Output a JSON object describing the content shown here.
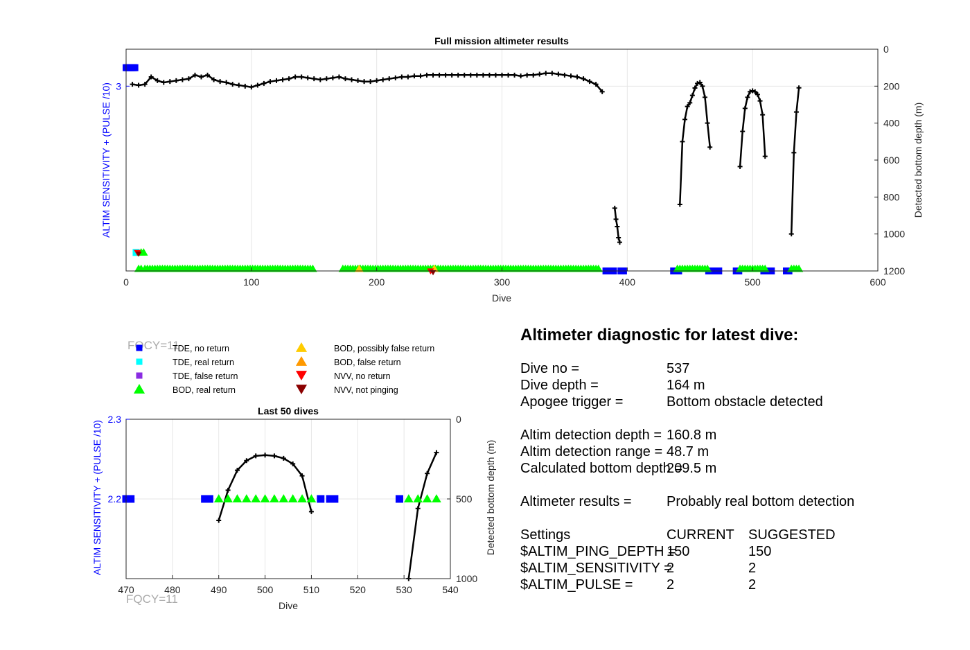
{
  "colors": {
    "tde_no_return": "#0000ff",
    "tde_real_return": "#00ffff",
    "tde_false_return": "#8a2be2",
    "bod_real_return": "#00ff00",
    "bod_possibly_false": "#ffcc00",
    "bod_false_return": "#ff9900",
    "nvv_no_return": "#ff0000",
    "nvv_not_pinging": "#8b0000",
    "bottom_depth_line": "#000000",
    "left_axis": "#0000ff"
  },
  "watermark": "FQCY=11",
  "legend": [
    {
      "label": "TDE, no return",
      "marker": "square",
      "color": "#0000ff"
    },
    {
      "label": "TDE, real return",
      "marker": "square",
      "color": "#00ffff"
    },
    {
      "label": "TDE, false return",
      "marker": "square",
      "color": "#8a2be2"
    },
    {
      "label": "BOD, real return",
      "marker": "triangle-up",
      "color": "#00ff00"
    },
    {
      "label": "BOD, possibly false return",
      "marker": "triangle-up",
      "color": "#ffcc00"
    },
    {
      "label": "BOD, false return",
      "marker": "triangle-up",
      "color": "#ff9900"
    },
    {
      "label": "NVV, no return",
      "marker": "triangle-down",
      "color": "#ff0000"
    },
    {
      "label": "NVV, not pinging",
      "marker": "triangle-down",
      "color": "#8b0000"
    }
  ],
  "chart_data": [
    {
      "type": "scatter",
      "title": "Full mission altimeter results",
      "xlabel": "Dive",
      "ylabel": "ALTIM SENSITIVITY + (PULSE /10)",
      "ylabel_right": "Detected bottom depth (m)",
      "xlim": [
        0,
        600
      ],
      "ylim_left": [
        2.0,
        3.2
      ],
      "ylim_right": [
        1200,
        0
      ],
      "right_axis_reversed": true,
      "grid": true,
      "xticks": [
        "0",
        "100",
        "200",
        "300",
        "400",
        "500",
        "600"
      ],
      "yticks_left": [
        "3"
      ],
      "yticks_right": [
        "0",
        "200",
        "400",
        "600",
        "800",
        "1000",
        "1200"
      ],
      "bottom_depth_segments": [
        {
          "x": [
            5,
            10,
            15,
            20,
            25,
            30,
            35,
            40,
            45,
            50,
            55,
            60,
            65,
            70,
            75,
            80,
            85,
            90,
            95,
            100,
            105,
            110,
            115,
            120,
            125,
            130,
            135,
            140,
            145,
            150,
            155,
            160,
            165,
            170,
            175,
            180,
            185,
            190,
            195,
            200,
            205,
            210,
            215,
            220,
            225,
            230,
            235,
            240,
            245,
            250,
            255,
            260,
            265,
            270,
            275,
            280,
            285,
            290,
            295,
            300,
            305,
            310,
            315,
            320,
            325,
            330,
            335,
            340,
            345,
            350,
            355,
            360,
            365,
            370,
            375,
            380
          ],
          "y": [
            190,
            195,
            190,
            150,
            170,
            180,
            175,
            170,
            165,
            160,
            140,
            150,
            140,
            165,
            175,
            180,
            190,
            195,
            200,
            205,
            195,
            185,
            175,
            170,
            165,
            160,
            150,
            150,
            155,
            160,
            165,
            160,
            155,
            150,
            160,
            165,
            170,
            175,
            175,
            170,
            165,
            160,
            155,
            150,
            150,
            145,
            145,
            140,
            140,
            140,
            140,
            140,
            140,
            140,
            140,
            140,
            140,
            140,
            140,
            140,
            140,
            140,
            145,
            140,
            140,
            135,
            130,
            130,
            135,
            140,
            145,
            150,
            160,
            175,
            190,
            230
          ]
        },
        {
          "x": [
            390,
            391,
            392,
            393,
            394
          ],
          "y": [
            860,
            920,
            960,
            1020,
            1045
          ]
        },
        {
          "x": [
            442,
            444,
            446,
            448,
            450,
            452,
            454,
            456,
            458,
            460,
            462,
            464,
            466
          ],
          "y": [
            840,
            500,
            380,
            310,
            290,
            250,
            210,
            185,
            180,
            200,
            260,
            400,
            530
          ]
        },
        {
          "x": [
            490,
            492,
            494,
            496,
            498,
            500,
            502,
            504,
            506,
            508,
            510
          ],
          "y": [
            635,
            445,
            320,
            260,
            230,
            225,
            230,
            245,
            280,
            355,
            580
          ]
        },
        {
          "x": [
            531,
            533,
            535,
            537
          ],
          "y": [
            1000,
            560,
            340,
            209
          ]
        }
      ],
      "tde_no_return": [
        [
          0,
          3.1
        ],
        [
          1,
          3.1
        ],
        [
          2,
          3.1
        ],
        [
          3,
          3.1
        ],
        [
          4,
          3.1
        ],
        [
          5,
          3.1
        ],
        [
          6,
          3.1
        ],
        [
          7,
          3.1
        ],
        [
          383,
          2.0
        ],
        [
          385,
          2.0
        ],
        [
          387,
          2.0
        ],
        [
          389,
          2.0
        ],
        [
          395,
          2.0
        ],
        [
          397,
          2.0
        ],
        [
          437,
          2.0
        ],
        [
          439,
          2.0
        ],
        [
          441,
          2.0
        ],
        [
          465,
          2.0
        ],
        [
          467,
          2.0
        ],
        [
          469,
          2.0
        ],
        [
          471,
          2.0
        ],
        [
          473,
          2.0
        ],
        [
          487,
          2.0
        ],
        [
          489,
          2.0
        ],
        [
          509,
          2.0
        ],
        [
          511,
          2.0
        ],
        [
          513,
          2.0
        ],
        [
          515,
          2.0
        ],
        [
          527,
          2.0
        ],
        [
          529,
          2.0
        ]
      ],
      "tde_real_return": [
        [
          8,
          2.1
        ]
      ],
      "bod_real_return_ranges": [
        [
          10,
          12
        ],
        [
          15,
          150
        ],
        [
          173,
          378
        ],
        [
          440,
          465
        ],
        [
          490,
          510
        ],
        [
          531,
          537
        ]
      ],
      "bod_real_return_extra": [
        [
          12,
          2.1
        ],
        [
          14,
          2.1
        ]
      ],
      "bod_possibly_false": [
        [
          186,
          2.0
        ],
        [
          246,
          2.0
        ]
      ],
      "nvv_no_return": [
        [
          9,
          2.1
        ],
        [
          243,
          2.0
        ]
      ],
      "nvv_not_pinging": [
        [
          10,
          2.1
        ],
        [
          245,
          2.0
        ]
      ]
    },
    {
      "type": "scatter",
      "title": "Last 50 dives",
      "xlabel": "Dive",
      "ylabel": "ALTIM SENSITIVITY + (PULSE /10)",
      "ylabel_right": "Detected bottom depth (m)",
      "xlim": [
        470,
        540
      ],
      "ylim_left": [
        2.1,
        2.3
      ],
      "ylim_right": [
        1000,
        0
      ],
      "right_axis_reversed": true,
      "grid": true,
      "xticks": [
        "470",
        "480",
        "490",
        "500",
        "510",
        "520",
        "530",
        "540"
      ],
      "yticks_left": [
        "2.2",
        "2.3"
      ],
      "yticks_right": [
        "0",
        "500",
        "1000"
      ],
      "bottom_depth_segments": [
        {
          "x": [
            490,
            492,
            494,
            496,
            498,
            500,
            502,
            504,
            506,
            508,
            510
          ],
          "y": [
            635,
            445,
            320,
            260,
            230,
            225,
            230,
            245,
            280,
            355,
            580
          ]
        },
        {
          "x": [
            531,
            533,
            535,
            537
          ],
          "y": [
            1000,
            560,
            340,
            209
          ]
        }
      ],
      "tde_no_return": [
        [
          470,
          2.2
        ],
        [
          471,
          2.2
        ],
        [
          487,
          2.2
        ],
        [
          488,
          2.2
        ],
        [
          512,
          2.2
        ],
        [
          514,
          2.2
        ],
        [
          515,
          2.2
        ],
        [
          529,
          2.2
        ]
      ],
      "bod_real_return": [
        [
          490,
          2.2
        ],
        [
          492,
          2.2
        ],
        [
          494,
          2.2
        ],
        [
          496,
          2.2
        ],
        [
          498,
          2.2
        ],
        [
          500,
          2.2
        ],
        [
          502,
          2.2
        ],
        [
          504,
          2.2
        ],
        [
          506,
          2.2
        ],
        [
          508,
          2.2
        ],
        [
          510,
          2.2
        ],
        [
          531,
          2.2
        ],
        [
          533,
          2.2
        ],
        [
          535,
          2.2
        ],
        [
          537,
          2.2
        ]
      ]
    }
  ],
  "diagnostic": {
    "heading": "Altimeter diagnostic for latest dive:",
    "rows1": [
      {
        "label": "Dive no =",
        "value": "537"
      },
      {
        "label": "Dive depth =",
        "value": "164 m"
      },
      {
        "label": "Apogee trigger =",
        "value": "Bottom obstacle detected"
      }
    ],
    "rows2": [
      {
        "label": "Altim detection depth =",
        "value": "160.8 m"
      },
      {
        "label": "Altim detection range =",
        "value": "48.7 m"
      },
      {
        "label": "Calculated bottom depth =",
        "value": "209.5 m"
      }
    ],
    "results": {
      "label": "Altimeter results =",
      "value": "Probably real bottom detection"
    },
    "settings_header": {
      "label": "Settings",
      "current": "CURRENT",
      "suggested": "SUGGESTED"
    },
    "settings": [
      {
        "name": "$ALTIM_PING_DEPTH =",
        "current": "150",
        "suggested": "150"
      },
      {
        "name": "$ALTIM_SENSITIVITY =",
        "current": "2",
        "suggested": "2"
      },
      {
        "name": "$ALTIM_PULSE =",
        "current": "2",
        "suggested": "2"
      }
    ]
  }
}
